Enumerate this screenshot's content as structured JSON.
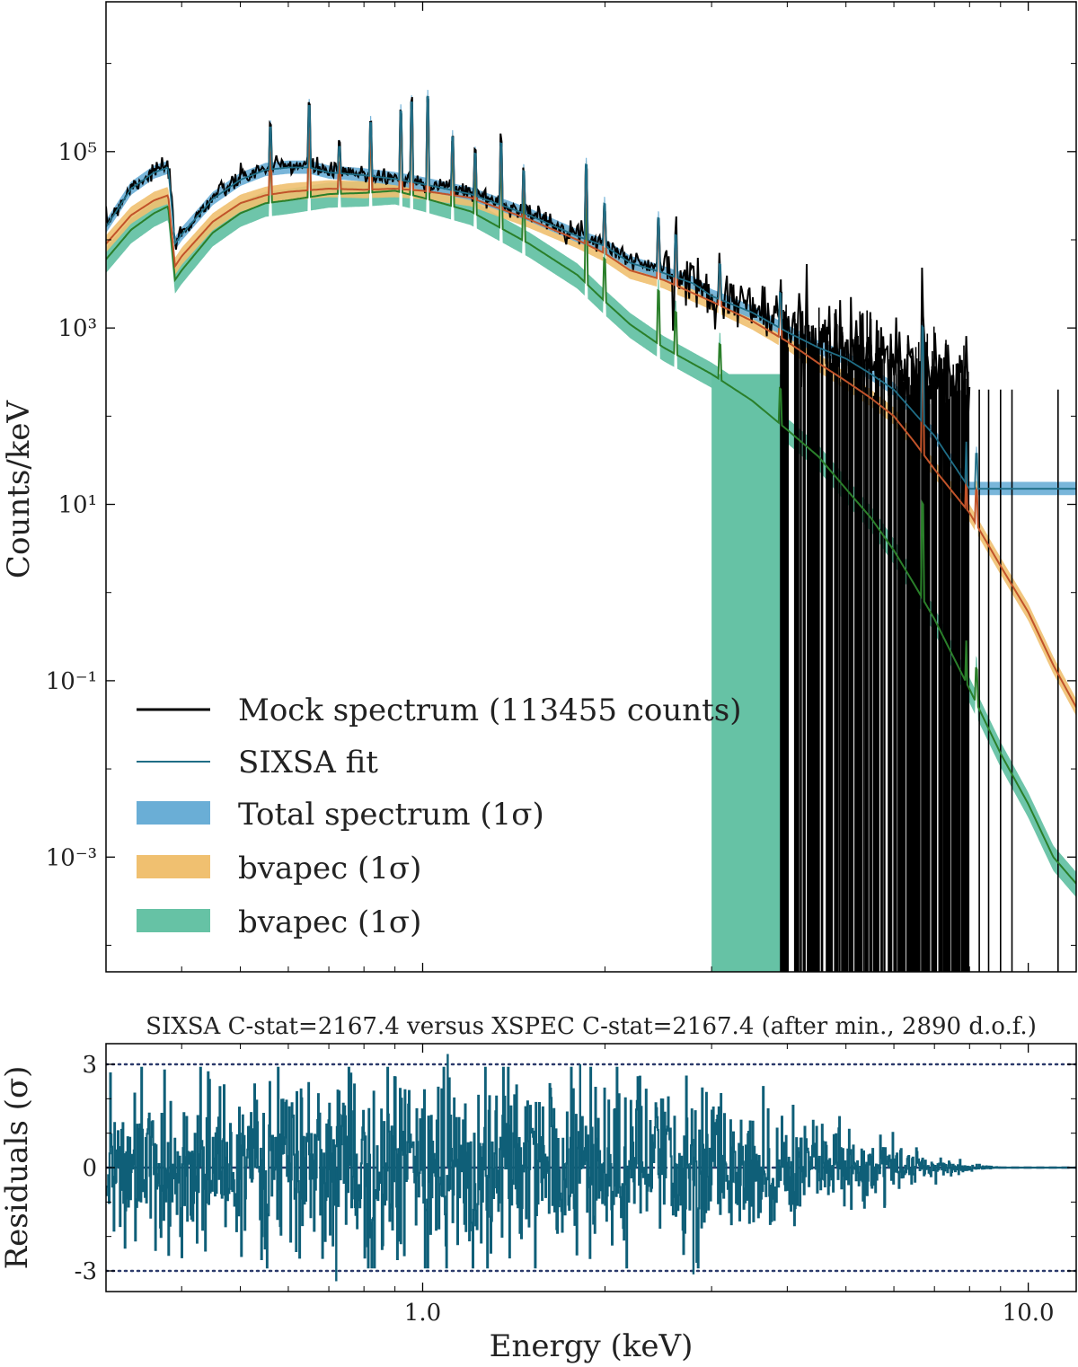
{
  "chart_data": [
    {
      "type": "line",
      "panel": "spectrum",
      "title": "",
      "xlabel": "",
      "ylabel": "Counts/keV",
      "xscale": "log",
      "yscale": "log",
      "xlim": [
        0.3,
        12.0
      ],
      "ylim": [
        5e-05,
        5000000
      ],
      "x_ticks": [
        1.0,
        10.0
      ],
      "y_ticks": [
        {
          "value": 100000,
          "label": "10^5"
        },
        {
          "value": 1000,
          "label": "10^3"
        },
        {
          "value": 10,
          "label": "10^1"
        },
        {
          "value": 0.1,
          "label": "10^-1"
        },
        {
          "value": 0.001,
          "label": "10^-3"
        }
      ],
      "legend": {
        "placement": "lower-left",
        "entries": [
          {
            "label": "Mock spectrum (113455 counts)",
            "style": "line",
            "color": "#000000"
          },
          {
            "label": "SIXSA fit",
            "style": "line",
            "color": "#1f6d86"
          },
          {
            "label": "Total spectrum (1σ)",
            "style": "patch",
            "color": "#6aaed6"
          },
          {
            "label": "bvapec (1σ)",
            "style": "patch",
            "color": "#f0c070"
          },
          {
            "label": "bvapec (1σ)",
            "style": "patch",
            "color": "#66c2a5"
          }
        ]
      },
      "series": [
        {
          "name": "Mock spectrum (113455 counts)",
          "color": "#000000",
          "x": [
            0.3,
            0.33,
            0.36,
            0.38,
            0.39,
            0.4,
            0.45,
            0.5,
            0.55,
            0.6,
            0.65,
            0.7,
            0.8,
            0.9,
            1.0,
            1.2,
            1.5,
            1.8,
            2.0,
            2.2,
            2.5,
            2.8,
            3.0,
            3.5,
            4.0,
            4.5,
            5.0,
            6.0,
            7.0,
            8.0
          ],
          "values": [
            15000,
            40000,
            60000,
            70000,
            9000,
            12000,
            30000,
            50000,
            65000,
            70000,
            70000,
            60000,
            55000,
            50000,
            45000,
            35000,
            20000,
            12000,
            9000,
            6000,
            4500,
            3500,
            2500,
            1800,
            1000,
            700,
            600,
            400,
            300,
            200
          ]
        },
        {
          "name": "SIXSA fit",
          "color": "#1f6d86",
          "x": [
            0.3,
            0.33,
            0.36,
            0.38,
            0.39,
            0.4,
            0.45,
            0.5,
            0.55,
            0.6,
            0.65,
            0.7,
            0.8,
            0.9,
            1.0,
            1.2,
            1.5,
            1.8,
            2.0,
            2.2,
            2.5,
            2.8,
            3.0,
            3.5,
            4.0,
            4.5,
            5.0,
            5.5,
            6.0,
            7.0,
            8.0
          ],
          "values": [
            14000,
            38000,
            58000,
            66000,
            9000,
            11500,
            29000,
            48000,
            62000,
            66000,
            66000,
            58000,
            54000,
            49000,
            43000,
            33000,
            19000,
            11000,
            8500,
            5500,
            4200,
            3200,
            2300,
            1500,
            900,
            600,
            450,
            300,
            200,
            60,
            15
          ]
        },
        {
          "name": "bvapec (1σ)",
          "color": "#c1532a",
          "band_color": "#f0c070",
          "x": [
            0.3,
            0.33,
            0.36,
            0.38,
            0.39,
            0.4,
            0.45,
            0.5,
            0.55,
            0.6,
            0.7,
            0.8,
            0.9,
            1.0,
            1.2,
            1.5,
            1.8,
            2.0,
            2.2,
            2.5,
            3.0,
            3.5,
            4.0,
            4.5,
            5.0,
            5.5,
            6.0,
            6.5,
            7.0,
            8.0,
            9.0,
            10.0,
            11.0,
            12.0
          ],
          "values": [
            9000,
            19000,
            28000,
            32000,
            5000,
            6500,
            16000,
            26000,
            32000,
            35000,
            38000,
            37000,
            38000,
            36000,
            30000,
            17000,
            10000,
            7000,
            4500,
            3500,
            2000,
            1200,
            700,
            400,
            250,
            160,
            100,
            50,
            25,
            8,
            2,
            0.6,
            0.15,
            0.05
          ]
        },
        {
          "name": "bvapec (1σ)",
          "color": "#2a7f2a",
          "band_color": "#66c2a5",
          "x": [
            0.3,
            0.33,
            0.36,
            0.38,
            0.39,
            0.4,
            0.45,
            0.5,
            0.55,
            0.6,
            0.7,
            0.8,
            0.9,
            1.0,
            1.2,
            1.5,
            1.8,
            2.0,
            2.2,
            2.5,
            3.0,
            3.5,
            4.0,
            4.5,
            5.0,
            5.5,
            6.0,
            6.5,
            7.0,
            8.0,
            9.0,
            10.0,
            11.0,
            12.0
          ],
          "values": [
            6000,
            13000,
            20000,
            24000,
            3500,
            4500,
            12000,
            20000,
            26000,
            28000,
            33000,
            34000,
            36000,
            30000,
            21000,
            9000,
            4000,
            2000,
            1100,
            600,
            300,
            150,
            70,
            35,
            15,
            7,
            3,
            1.2,
            0.5,
            0.08,
            0.015,
            0.004,
            0.001,
            0.0005
          ]
        }
      ]
    },
    {
      "type": "line",
      "panel": "residuals",
      "title": "SIXSA C-stat=2167.4 versus XSPEC C-stat=2167.4 (after min., 2890 d.o.f.)",
      "xlabel": "Energy (keV)",
      "ylabel": "Residuals (σ)",
      "xscale": "log",
      "xlim": [
        0.3,
        12.0
      ],
      "ylim": [
        -3.6,
        3.6
      ],
      "x_ticks": [
        {
          "value": 1.0,
          "label": "1.0"
        },
        {
          "value": 10.0,
          "label": "10.0"
        }
      ],
      "y_ticks": [
        {
          "value": 3,
          "label": "3"
        },
        {
          "value": 0,
          "label": "0"
        },
        {
          "value": -3,
          "label": "-3"
        }
      ],
      "reference_lines": [
        {
          "y": 3,
          "style": "dotted"
        },
        {
          "y": 0,
          "style": "dashed"
        },
        {
          "y": -3,
          "style": "dotted"
        }
      ],
      "series": [
        {
          "name": "Residuals",
          "color": "#0f5f78",
          "envelope_x": [
            0.3,
            0.5,
            0.8,
            1.0,
            1.5,
            2.0,
            2.5,
            3.0,
            4.0,
            5.0,
            6.0,
            7.0,
            8.0,
            9.0,
            12.0
          ],
          "envelope_sigma": [
            1.0,
            1.2,
            1.4,
            1.5,
            1.4,
            1.3,
            1.2,
            1.0,
            0.8,
            0.55,
            0.35,
            0.15,
            0.05,
            0.0,
            0.0
          ],
          "outliers": [
            {
              "x": 1.1,
              "value": 3.3
            },
            {
              "x": 0.72,
              "value": -3.3
            },
            {
              "x": 1.82,
              "value": 3.0
            },
            {
              "x": 2.8,
              "value": -3.1
            },
            {
              "x": 5.8,
              "value": -1.1
            }
          ]
        }
      ]
    }
  ]
}
